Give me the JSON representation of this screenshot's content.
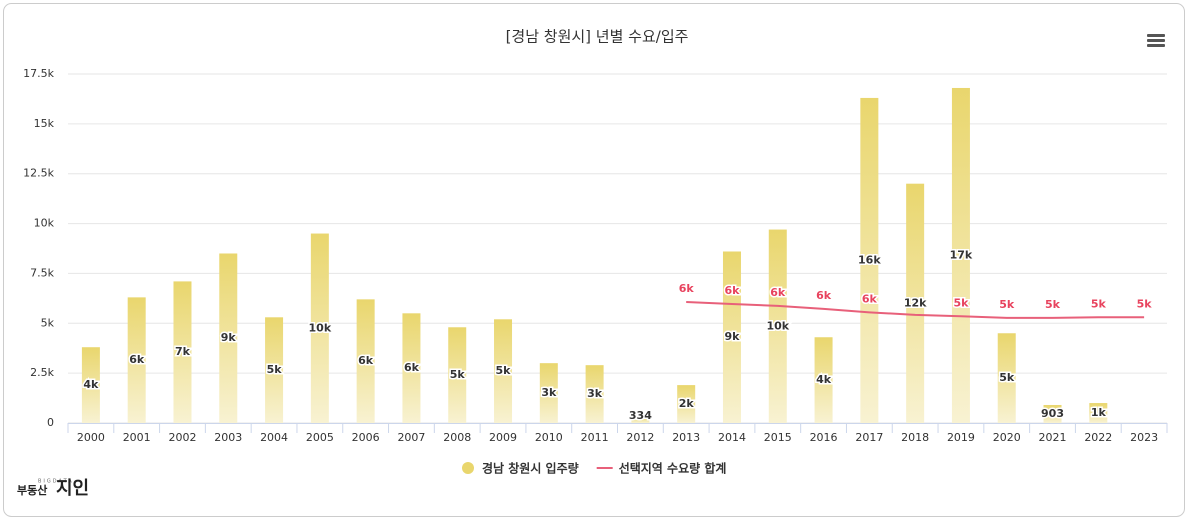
{
  "chart_data": {
    "type": "bar_line",
    "title": "[경남 창원시] 년별 수요/입주",
    "categories": [
      "2000",
      "2001",
      "2002",
      "2003",
      "2004",
      "2005",
      "2006",
      "2007",
      "2008",
      "2009",
      "2010",
      "2011",
      "2012",
      "2013",
      "2014",
      "2015",
      "2016",
      "2017",
      "2018",
      "2019",
      "2020",
      "2021",
      "2022",
      "2023"
    ],
    "series": [
      {
        "name": "경남 창원시 입주량",
        "type": "bar",
        "color": "#e9d66d",
        "values": [
          3800,
          6300,
          7100,
          8500,
          5300,
          9500,
          6200,
          5500,
          4800,
          5200,
          3000,
          2900,
          334,
          1900,
          8600,
          9700,
          4300,
          16300,
          12000,
          16800,
          4500,
          903,
          1000,
          null
        ],
        "value_labels": [
          "4k",
          "6k",
          "7k",
          "9k",
          "5k",
          "10k",
          "6k",
          "6k",
          "5k",
          "5k",
          "3k",
          "3k",
          "334",
          "2k",
          "9k",
          "10k",
          "4k",
          "16k",
          "12k",
          "17k",
          "5k",
          "903",
          "1k",
          null
        ]
      },
      {
        "name": "선택지역 수요량 합계",
        "type": "line",
        "color": "#e8607a",
        "values": [
          null,
          null,
          null,
          null,
          null,
          null,
          null,
          null,
          null,
          null,
          null,
          null,
          null,
          6070,
          5970,
          5870,
          5720,
          5550,
          5420,
          5350,
          5270,
          5270,
          5300,
          5300
        ],
        "value_labels": [
          null,
          null,
          null,
          null,
          null,
          null,
          null,
          null,
          null,
          null,
          null,
          null,
          null,
          "6k",
          "6k",
          "6k",
          "6k",
          "6k",
          null,
          "5k",
          "5k",
          "5k",
          "5k",
          "5k"
        ]
      }
    ],
    "ylim": [
      0,
      17500
    ],
    "yticks": [
      0,
      {
        "value": 2500,
        "label": "2.5k"
      },
      {
        "value": 5000,
        "label": "5k"
      },
      {
        "value": 7500,
        "label": "7.5k"
      },
      {
        "value": 10000,
        "label": "10k"
      },
      {
        "value": 12500,
        "label": "12.5k"
      },
      {
        "value": 15000,
        "label": "15k"
      },
      {
        "value": 17500,
        "label": "17.5k"
      }
    ],
    "grid": true,
    "legend": "bottom"
  },
  "logo": {
    "small": "BIGDATA",
    "main": "부동산",
    "brand": "지인"
  }
}
